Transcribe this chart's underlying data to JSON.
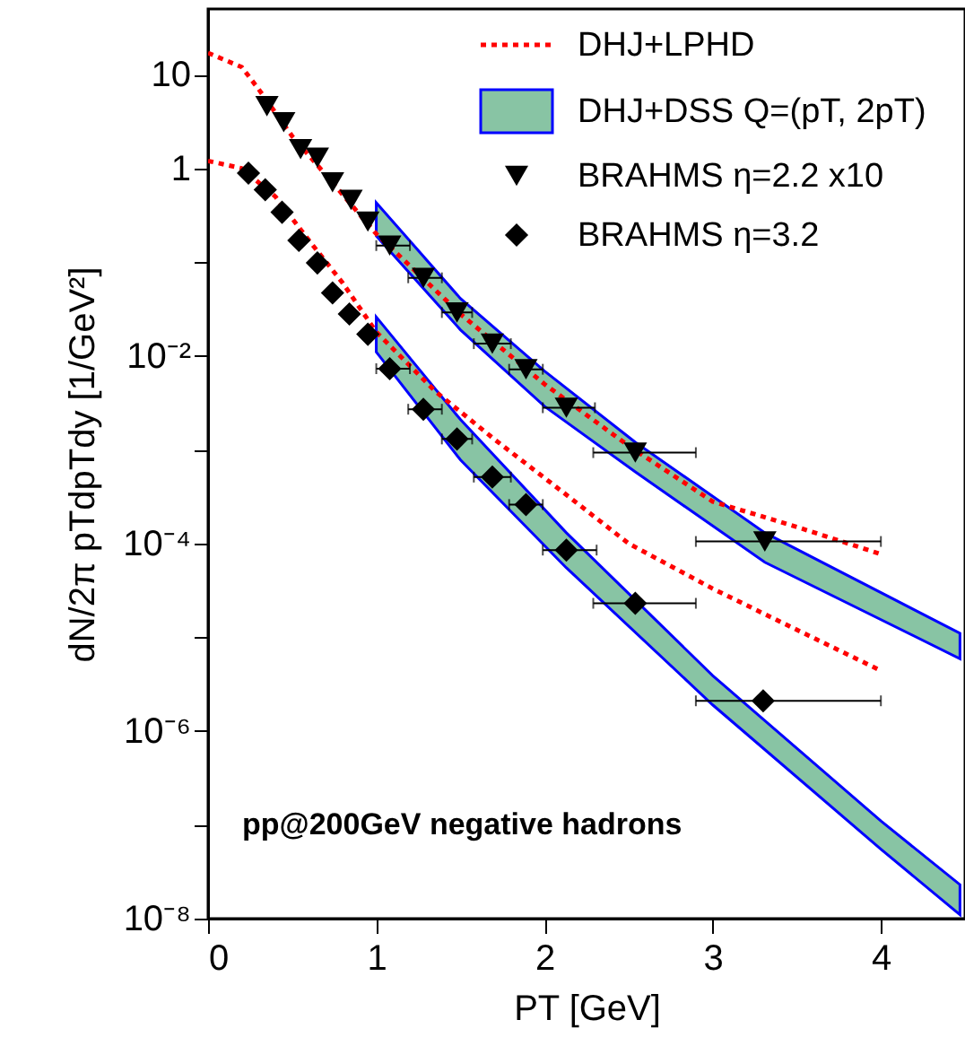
{
  "chart_data": {
    "type": "scatter",
    "xlabel": "PT [GeV]",
    "ylabel": "dN/2π pTdpTdy [1/GeV²]",
    "xlim": [
      0,
      4.5
    ],
    "xticks": [
      0,
      1,
      2,
      3,
      4
    ],
    "ylim": [
      1e-08,
      50
    ],
    "log": "y",
    "yticks": [
      {
        "value": 10,
        "label": "10"
      },
      {
        "value": 1,
        "label": "1"
      },
      {
        "value": 0.1,
        "label": null
      },
      {
        "value": 0.01,
        "label": "10⁻²"
      },
      {
        "value": 0.001,
        "label": null
      },
      {
        "value": 0.0001,
        "label": "10⁻⁴"
      },
      {
        "value": 1e-05,
        "label": null
      },
      {
        "value": 1e-06,
        "label": "10⁻⁶"
      },
      {
        "value": 1e-07,
        "label": null
      },
      {
        "value": 1e-08,
        "label": "10⁻⁸"
      }
    ],
    "grid": false,
    "legend": "top right",
    "annotations": [
      "pp@200GeV negative hadrons"
    ],
    "series": [
      {
        "type": "line",
        "name": "DHJ+LPHD",
        "color": "#ff0000",
        "line_style": "dotted",
        "marker": "none",
        "x": [
          0,
          0.2,
          0.3,
          0.5,
          0.7,
          1.0,
          1.5,
          2.0,
          2.5,
          3.0,
          3.5,
          4.0
        ],
        "values": [
          17,
          12,
          7,
          2.2,
          0.85,
          0.2,
          0.028,
          0.005,
          0.0011,
          0.00028,
          0.00015,
          7.7e-05
        ]
      },
      {
        "type": "line",
        "color": "#ff0000",
        "line_style": "dotted",
        "marker": "none",
        "x": [
          0,
          0.2,
          0.4,
          0.6,
          0.8,
          1.0,
          1.35,
          1.7,
          2.16,
          2.5,
          3.0,
          3.5,
          4.0
        ],
        "values": [
          1.2,
          1.0,
          0.5,
          0.17,
          0.06,
          0.018,
          0.0042,
          0.0013,
          0.0003,
          0.0001,
          3.3e-05,
          1.2e-05,
          4.4e-06
        ]
      },
      {
        "type": "area",
        "name": "DHJ+DSS Q=(pT, 2pT)",
        "color": "#88c4a4",
        "x": [
          1.0,
          1.5,
          2.0,
          2.54,
          3.31,
          4.47
        ],
        "values": [
          null,
          null,
          null,
          null,
          null,
          null
        ],
        "lower": [
          0.19,
          0.019,
          0.0029,
          0.00058,
          6.3e-05,
          5.9e-06
        ],
        "upper": [
          0.43,
          0.041,
          0.0069,
          0.0012,
          0.00013,
          1.1e-05
        ]
      },
      {
        "type": "area",
        "color": "#88c4a4",
        "x": [
          1.0,
          1.5,
          2.13,
          3.0,
          4.0,
          4.47
        ],
        "values": [
          null,
          null,
          null,
          null,
          null,
          null
        ],
        "lower": [
          0.011,
          0.00078,
          5.5e-05,
          1.9e-06,
          5.5e-08,
          1.1e-08
        ],
        "upper": [
          0.026,
          0.0021,
          0.00013,
          3.9e-06,
          1.1e-07,
          2.3e-08
        ]
      },
      {
        "name": "BRAHMS η=2.2 x10",
        "color": "#000000",
        "marker": "triangle",
        "x": [
          0.35,
          0.45,
          0.55,
          0.65,
          0.74,
          0.85,
          0.95,
          1.08,
          1.28,
          1.48,
          1.69,
          1.89,
          2.13,
          2.54,
          3.31
        ],
        "values": [
          4.6,
          3.1,
          1.6,
          1.3,
          0.71,
          0.46,
          0.27,
          0.15,
          0.068,
          0.029,
          0.0135,
          0.0072,
          0.0028,
          0.00093,
          0.000105
        ],
        "xerrors": [
          null,
          null,
          null,
          null,
          null,
          null,
          null,
          [
            1.0,
            1.2
          ],
          [
            1.19,
            1.39
          ],
          [
            1.39,
            1.57
          ],
          [
            1.58,
            1.8
          ],
          [
            1.79,
            1.99
          ],
          [
            1.99,
            2.3
          ],
          [
            2.29,
            2.9
          ],
          [
            2.9,
            4.0
          ]
        ]
      },
      {
        "name": "BRAHMS η=3.2",
        "color": "#000000",
        "marker": "diamond",
        "x": [
          0.24,
          0.34,
          0.44,
          0.54,
          0.65,
          0.74,
          0.84,
          0.95,
          1.08,
          1.28,
          1.48,
          1.69,
          1.89,
          2.13,
          2.54,
          3.3
        ],
        "values": [
          0.89,
          0.59,
          0.34,
          0.17,
          0.098,
          0.047,
          0.028,
          0.017,
          0.0073,
          0.0027,
          0.0013,
          0.00051,
          0.00026,
          8.5e-05,
          2.3e-05,
          2.1e-06
        ],
        "xerrors": [
          null,
          null,
          null,
          null,
          null,
          null,
          null,
          null,
          [
            1.0,
            1.2
          ],
          [
            1.19,
            1.39
          ],
          [
            1.39,
            1.57
          ],
          [
            1.58,
            1.8
          ],
          [
            1.79,
            1.99
          ],
          [
            1.99,
            2.31
          ],
          [
            2.29,
            2.9
          ],
          [
            2.9,
            4.0
          ]
        ]
      }
    ]
  }
}
